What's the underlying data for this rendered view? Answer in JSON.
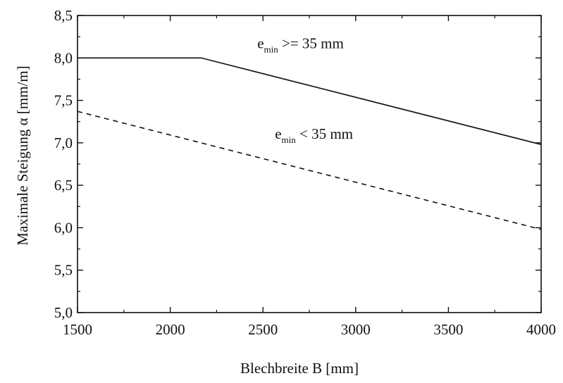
{
  "chart_data": {
    "type": "line",
    "title": "",
    "xlabel": "Blechbreite B [mm]",
    "ylabel": "Maximale Steigung α  [mm/m]",
    "xlim": [
      1500,
      4000
    ],
    "ylim": [
      5.0,
      8.5
    ],
    "x_ticks": [
      1500,
      2000,
      2500,
      3000,
      3500,
      4000
    ],
    "x_tick_labels": [
      "1500",
      "2000",
      "2500",
      "3000",
      "3500",
      "4000"
    ],
    "y_ticks": [
      5.0,
      5.5,
      6.0,
      6.5,
      7.0,
      7.5,
      8.0,
      8.5
    ],
    "y_tick_labels": [
      "5,0",
      "5,5",
      "6,0",
      "6,5",
      "7,0",
      "7,5",
      "8,0",
      "8,5"
    ],
    "grid": false,
    "series": [
      {
        "style": "solid",
        "x": [
          1500,
          2167,
          4000
        ],
        "y": [
          8.0,
          8.0,
          6.98
        ]
      },
      {
        "style": "dashed",
        "x": [
          1500,
          4000
        ],
        "y": [
          7.37,
          5.98
        ]
      }
    ],
    "annotations": [
      {
        "base": "e",
        "sub": "min",
        "text": " >= 35 mm",
        "x": 2500,
        "y": 8.0,
        "series_index": 0
      },
      {
        "base": "e",
        "sub": "min",
        "text": " < 35 mm",
        "x": 2500,
        "y": 7.0,
        "series_index": 1
      }
    ],
    "colors": {
      "axis": "#111111",
      "line": "#111111"
    }
  }
}
